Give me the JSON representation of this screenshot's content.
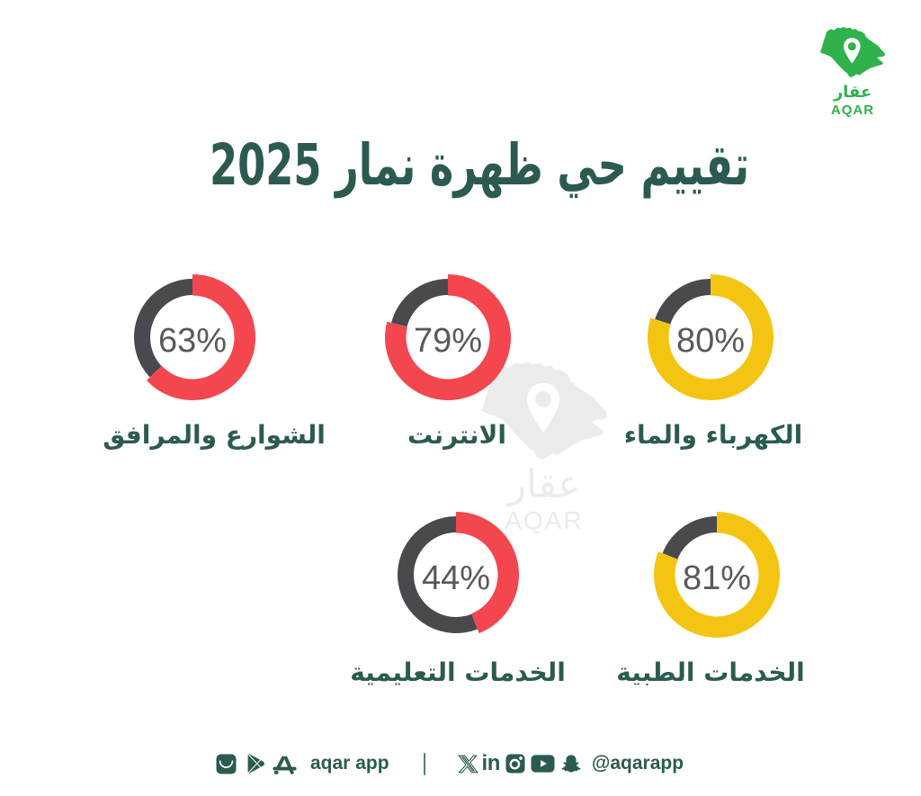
{
  "page": {
    "background": "#ffffff"
  },
  "logo": {
    "icon": "saudi-arabia-map-pin-icon",
    "brand_ar": "عقار",
    "brand_en": "AQAR",
    "color": "#2FB24C"
  },
  "title": {
    "text": "تقييم حي ظهرة نمار 2025",
    "color": "#2B5B50"
  },
  "watermark": {
    "icon": "saudi-arabia-map-pin-icon",
    "brand_ar": "عقار",
    "brand_en": "AQAR",
    "color": "#EBEBEB"
  },
  "chart_data": {
    "type": "pie",
    "variant": "donut-progress-rings",
    "unit": "%",
    "title": "تقييم حي ظهرة نمار 2025",
    "legend_position": "below-each-ring",
    "start_angle": "top, clockwise",
    "track_color": "#4A494D",
    "value_text_color": "#58595B",
    "label_color": "#2B5B50",
    "items": [
      {
        "label": "الشوارع والمرافق",
        "value": 63,
        "display": "63%",
        "color": "#F4464E"
      },
      {
        "label": "الانترنت",
        "value": 79,
        "display": "79%",
        "color": "#F4464E"
      },
      {
        "label": "الكهرباء والماء",
        "value": 80,
        "display": "80%",
        "color": "#F3C512"
      },
      {
        "label": "الخدمات التعليمية",
        "value": 44,
        "display": "44%",
        "color": "#F4464E"
      },
      {
        "label": "الخدمات الطبية",
        "value": 81,
        "display": "81%",
        "color": "#F3C512"
      }
    ]
  },
  "footer": {
    "store_icons": [
      "huawei-appgallery-icon",
      "google-play-icon",
      "apple-app-store-icon"
    ],
    "app_label": "aqar app",
    "separator": "|",
    "social_icons": [
      "x-twitter-icon",
      "linkedin-icon",
      "instagram-icon",
      "youtube-icon",
      "snapchat-icon"
    ],
    "handle": "@aqarapp",
    "color": "#2B5B50"
  }
}
